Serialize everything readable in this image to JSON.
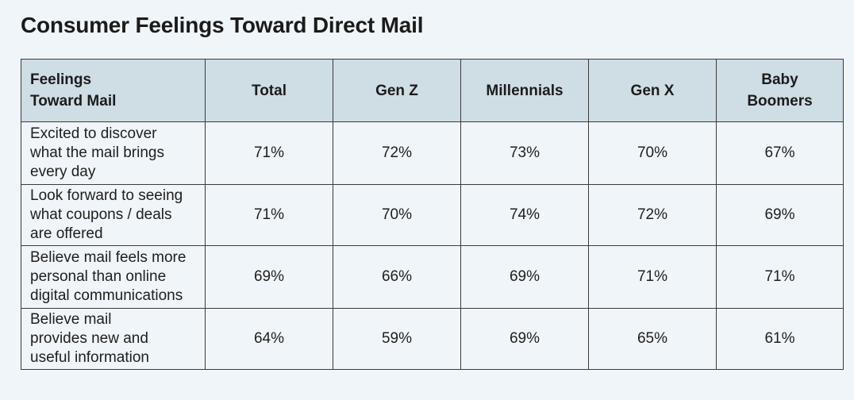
{
  "chart_data": {
    "type": "table",
    "title": "Consumer Feelings Toward Direct Mail",
    "columns": [
      "Feelings\nToward Mail",
      "Total",
      "Gen Z",
      "Millennials",
      "Gen X",
      "Baby\nBoomers"
    ],
    "rows": [
      {
        "label": "Excited to discover\nwhat the mail brings\nevery day",
        "values": [
          "71%",
          "72%",
          "73%",
          "70%",
          "67%"
        ]
      },
      {
        "label": "Look forward to seeing\nwhat coupons / deals\nare offered",
        "values": [
          "71%",
          "70%",
          "74%",
          "72%",
          "69%"
        ]
      },
      {
        "label": "Believe mail feels more\npersonal than online\ndigital communications",
        "values": [
          "69%",
          "66%",
          "69%",
          "71%",
          "71%"
        ]
      },
      {
        "label": "Believe mail\nprovides new and\nuseful information",
        "values": [
          "64%",
          "59%",
          "69%",
          "65%",
          "61%"
        ]
      }
    ]
  },
  "colors": {
    "header_background": "#cfdde5",
    "page_background": "#f0f5f9",
    "border": "#3a3a3a"
  }
}
